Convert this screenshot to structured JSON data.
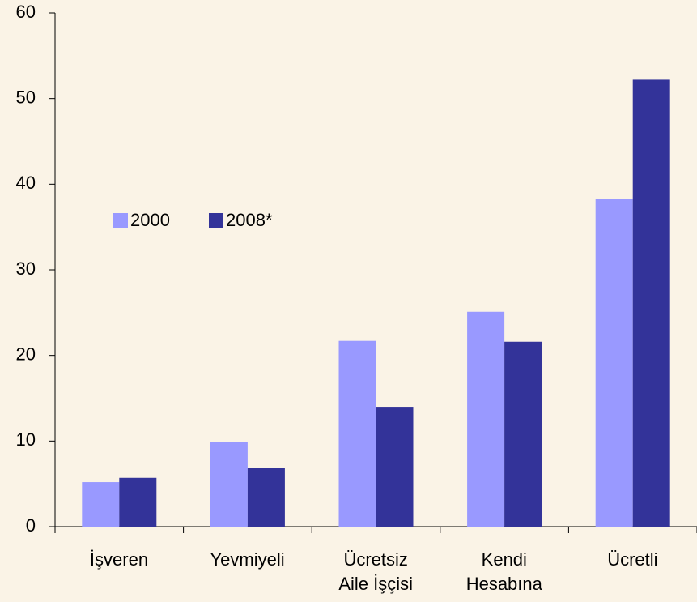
{
  "chart_data": {
    "type": "bar",
    "categories": [
      "İşveren",
      "Yevmiyeli",
      "Ücretsiz\nAile İşçisi",
      "Kendi\nHesabına",
      "Ücretli"
    ],
    "series": [
      {
        "name": "2000",
        "color": "#9999ff",
        "values": [
          5.2,
          9.9,
          21.7,
          25.1,
          38.3
        ]
      },
      {
        "name": "2008*",
        "color": "#333399",
        "values": [
          5.7,
          6.9,
          14.0,
          21.6,
          52.2
        ]
      }
    ],
    "ylim": [
      0,
      60
    ],
    "yticks": [
      0,
      10,
      20,
      30,
      40,
      50,
      60
    ],
    "grid": false,
    "legend": "center-left"
  }
}
